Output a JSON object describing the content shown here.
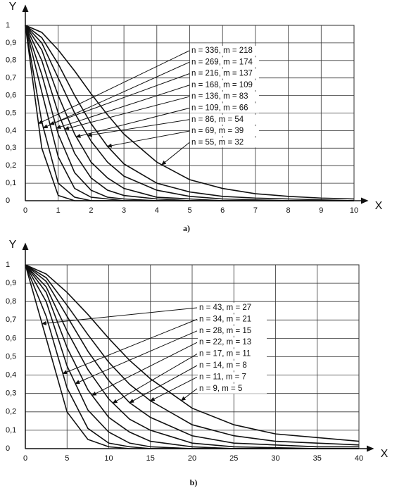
{
  "chart_data": [
    {
      "type": "line",
      "caption": "a)",
      "x_label": "X",
      "y_label": "Y",
      "x": [
        0,
        0.5,
        1,
        1.5,
        2,
        2.5,
        3,
        4,
        5,
        6,
        7,
        8,
        9,
        10
      ],
      "series": [
        {
          "name": "n = 336, m = 218",
          "color": "#111111",
          "values": [
            1,
            0.3,
            0.03,
            0,
            0,
            0,
            0,
            0,
            0,
            0,
            0,
            0,
            0,
            0
          ]
        },
        {
          "name": "n = 269, m = 174",
          "color": "#111111",
          "values": [
            1,
            0.45,
            0.1,
            0.02,
            0,
            0,
            0,
            0,
            0,
            0,
            0,
            0,
            0,
            0
          ]
        },
        {
          "name": "n = 216, m = 137",
          "color": "#111111",
          "values": [
            1,
            0.62,
            0.25,
            0.07,
            0.02,
            0.01,
            0,
            0,
            0,
            0,
            0,
            0,
            0,
            0
          ]
        },
        {
          "name": "n = 168, m = 109",
          "color": "#111111",
          "values": [
            1,
            0.72,
            0.38,
            0.16,
            0.06,
            0.02,
            0.01,
            0,
            0,
            0,
            0,
            0,
            0,
            0
          ]
        },
        {
          "name": "n = 136, m = 83",
          "color": "#111111",
          "values": [
            1,
            0.8,
            0.5,
            0.27,
            0.13,
            0.06,
            0.03,
            0.01,
            0,
            0,
            0,
            0,
            0,
            0
          ]
        },
        {
          "name": "n = 109, m = 66",
          "color": "#111111",
          "values": [
            1,
            0.86,
            0.6,
            0.38,
            0.22,
            0.13,
            0.07,
            0.02,
            0.01,
            0,
            0,
            0,
            0,
            0
          ]
        },
        {
          "name": "n = 86, m = 54",
          "color": "#111111",
          "values": [
            1,
            0.9,
            0.7,
            0.5,
            0.34,
            0.22,
            0.14,
            0.06,
            0.025,
            0.01,
            0.005,
            0,
            0,
            0
          ]
        },
        {
          "name": "n = 69, m = 39",
          "color": "#111111",
          "values": [
            1,
            0.93,
            0.78,
            0.6,
            0.44,
            0.31,
            0.21,
            0.1,
            0.05,
            0.025,
            0.015,
            0.01,
            0.005,
            0
          ]
        },
        {
          "name": "n = 55, m = 32",
          "color": "#111111",
          "values": [
            1,
            0.96,
            0.86,
            0.74,
            0.61,
            0.49,
            0.38,
            0.22,
            0.12,
            0.07,
            0.04,
            0.025,
            0.015,
            0.01
          ]
        }
      ],
      "xlim": [
        0,
        10
      ],
      "xticks": [
        0,
        1,
        2,
        3,
        4,
        5,
        6,
        7,
        8,
        9,
        10
      ],
      "ylim": [
        0,
        1
      ],
      "yticks": [
        0,
        {
          "value": 0.1,
          "label": "0,1"
        },
        {
          "value": 0.2,
          "label": "0,2"
        },
        {
          "value": 0.3,
          "label": "0,3"
        },
        {
          "value": 0.4,
          "label": "0,4"
        },
        {
          "value": 0.5,
          "label": "0,5"
        },
        {
          "value": 0.6,
          "label": "0,6"
        },
        {
          "value": 0.7,
          "label": "0,7"
        },
        {
          "value": 0.8,
          "label": "0,8"
        },
        {
          "value": 0.9,
          "label": "0,9"
        },
        1
      ],
      "grid": true
    },
    {
      "type": "line",
      "caption": "b)",
      "x_label": "X",
      "y_label": "Y",
      "x": [
        0,
        2.5,
        5,
        7.5,
        10,
        12.5,
        15,
        20,
        25,
        30,
        35,
        40
      ],
      "series": [
        {
          "name": "n = 43, m = 27",
          "color": "#111111",
          "values": [
            1,
            0.6,
            0.2,
            0.05,
            0.01,
            0,
            0,
            0,
            0,
            0,
            0,
            0
          ]
        },
        {
          "name": "n = 34, m = 21",
          "color": "#111111",
          "values": [
            1,
            0.72,
            0.33,
            0.11,
            0.03,
            0.01,
            0,
            0,
            0,
            0,
            0,
            0
          ]
        },
        {
          "name": "n = 28, m = 15",
          "color": "#111111",
          "values": [
            1,
            0.8,
            0.45,
            0.21,
            0.09,
            0.03,
            0.01,
            0,
            0,
            0,
            0,
            0
          ]
        },
        {
          "name": "n = 22, m = 13",
          "color": "#111111",
          "values": [
            1,
            0.85,
            0.55,
            0.32,
            0.17,
            0.09,
            0.04,
            0.01,
            0,
            0,
            0,
            0
          ]
        },
        {
          "name": "n = 17, m = 11",
          "color": "#111111",
          "values": [
            1,
            0.88,
            0.64,
            0.43,
            0.27,
            0.16,
            0.1,
            0.03,
            0.01,
            0.005,
            0,
            0
          ]
        },
        {
          "name": "n = 14, m = 8",
          "color": "#111111",
          "values": [
            1,
            0.91,
            0.72,
            0.53,
            0.37,
            0.25,
            0.17,
            0.07,
            0.03,
            0.02,
            0.01,
            0.01
          ]
        },
        {
          "name": "n = 11, m = 7",
          "color": "#111111",
          "values": [
            1,
            0.93,
            0.78,
            0.62,
            0.47,
            0.35,
            0.26,
            0.13,
            0.07,
            0.04,
            0.03,
            0.02
          ]
        },
        {
          "name": "n = 9, m = 5",
          "color": "#111111",
          "values": [
            1,
            0.95,
            0.85,
            0.73,
            0.6,
            0.48,
            0.38,
            0.22,
            0.13,
            0.08,
            0.06,
            0.04
          ]
        }
      ],
      "xlim": [
        0,
        40
      ],
      "xticks": [
        0,
        5,
        10,
        15,
        20,
        25,
        30,
        35,
        40
      ],
      "ylim": [
        0,
        1
      ],
      "yticks": [
        0,
        {
          "value": 0.1,
          "label": "0,1"
        },
        {
          "value": 0.2,
          "label": "0,2"
        },
        {
          "value": 0.3,
          "label": "0,3"
        },
        {
          "value": 0.4,
          "label": "0,4"
        },
        {
          "value": 0.5,
          "label": "0,5"
        },
        {
          "value": 0.6,
          "label": "0,6"
        },
        {
          "value": 0.7,
          "label": "0,7"
        },
        {
          "value": 0.8,
          "label": "0,8"
        },
        {
          "value": 0.9,
          "label": "0,9"
        },
        1
      ],
      "grid": true
    }
  ]
}
